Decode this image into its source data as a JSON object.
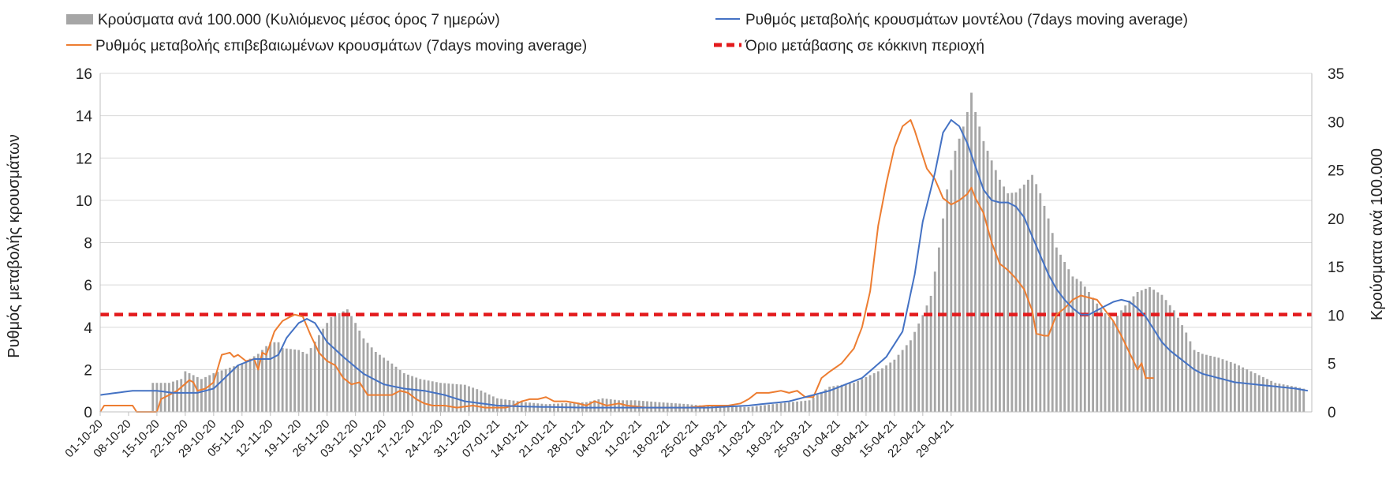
{
  "legend": {
    "bars": "Κρούσματα ανά 100.000 (Κυλιόμενος μέσος όρος 7 ημερών)",
    "model": "Ρυθμός μεταβολής κρουσμάτων μοντέλου (7days moving average)",
    "confirmed": "Ρυθμός μεταβολής επιβεβαιωμένων κρουσμάτων (7days moving average)",
    "threshold": "Όριο μετάβασης σε κόκκινη περιοχή"
  },
  "chart_data": {
    "type": "bar",
    "title": "",
    "ylabel_left": "Ρυθμός μεταβολής κρουσμάτων",
    "ylabel_right": "Κρούσματα ανά 100.000",
    "ylim_left": [
      0,
      16
    ],
    "ylim_right": [
      0,
      35
    ],
    "yticks_left": [
      0,
      2,
      4,
      6,
      8,
      10,
      12,
      14,
      16
    ],
    "yticks_right": [
      0,
      5,
      10,
      15,
      20,
      25,
      30,
      35
    ],
    "xtick_labels": [
      "01-10-20",
      "08-10-20",
      "15-10-20",
      "22-10-20",
      "29-10-20",
      "05-11-20",
      "12-11-20",
      "19-11-20",
      "26-11-20",
      "03-12-20",
      "10-12-20",
      "17-12-20",
      "24-12-20",
      "31-12-20",
      "07-01-21",
      "14-01-21",
      "21-01-21",
      "28-01-21",
      "04-02-21",
      "11-02-21",
      "18-02-21",
      "25-02-21",
      "04-03-21",
      "11-03-21",
      "18-03-21",
      "25-03-21",
      "01-04-21",
      "08-04-21",
      "15-04-21",
      "22-04-21",
      "29-04-21"
    ],
    "grid": true,
    "legend_position": "top",
    "colors": {
      "bars": "#a6a6a6",
      "model": "#4472c4",
      "confirmed": "#ed7d31",
      "threshold": "#e31a1c"
    },
    "threshold_value": 4.6,
    "bars_keyframes": [
      [
        0,
        0
      ],
      [
        12,
        0
      ],
      [
        13,
        3
      ],
      [
        17,
        3
      ],
      [
        20,
        3.4
      ],
      [
        21,
        4.2
      ],
      [
        25,
        3.4
      ],
      [
        28,
        4
      ],
      [
        35,
        5
      ],
      [
        39,
        6
      ],
      [
        42,
        7.2
      ],
      [
        44,
        7.2
      ],
      [
        45,
        6.6
      ],
      [
        49,
        6.4
      ],
      [
        51,
        6
      ],
      [
        52,
        6.6
      ],
      [
        55,
        8.6
      ],
      [
        57,
        9.8
      ],
      [
        60,
        10.4
      ],
      [
        61,
        10.6
      ],
      [
        63,
        9.2
      ],
      [
        65,
        7.6
      ],
      [
        68,
        6.2
      ],
      [
        72,
        5
      ],
      [
        75,
        4
      ],
      [
        79,
        3.4
      ],
      [
        84,
        3
      ],
      [
        90,
        2.8
      ],
      [
        94,
        2.2
      ],
      [
        98,
        1.4
      ],
      [
        105,
        1
      ],
      [
        110,
        0.8
      ],
      [
        120,
        1
      ],
      [
        124,
        1.4
      ],
      [
        128,
        1.2
      ],
      [
        132,
        1.2
      ],
      [
        138,
        1
      ],
      [
        145,
        0.8
      ],
      [
        150,
        0.6
      ],
      [
        160,
        0.5
      ],
      [
        168,
        0.9
      ],
      [
        175,
        1.2
      ],
      [
        180,
        2.6
      ],
      [
        186,
        3
      ],
      [
        192,
        4.2
      ],
      [
        196,
        5.4
      ],
      [
        200,
        7.4
      ],
      [
        203,
        10
      ],
      [
        205,
        12
      ],
      [
        207,
        17
      ],
      [
        209,
        23
      ],
      [
        211,
        27
      ],
      [
        213,
        29.5
      ],
      [
        214,
        31
      ],
      [
        215,
        33
      ],
      [
        216,
        31
      ],
      [
        218,
        28
      ],
      [
        220,
        26
      ],
      [
        222,
        24
      ],
      [
        224,
        22.6
      ],
      [
        226,
        22.7
      ],
      [
        228,
        23.5
      ],
      [
        230,
        24.5
      ],
      [
        232,
        22.6
      ],
      [
        234,
        20
      ],
      [
        236,
        17
      ],
      [
        238,
        15.5
      ],
      [
        240,
        14
      ],
      [
        242,
        13.5
      ],
      [
        244,
        12.4
      ],
      [
        247,
        10.6
      ],
      [
        250,
        9.4
      ],
      [
        252,
        10.5
      ],
      [
        254,
        11.5
      ],
      [
        256,
        12.4
      ],
      [
        259,
        12.9
      ],
      [
        262,
        12.1
      ],
      [
        265,
        10.5
      ],
      [
        268,
        8.2
      ],
      [
        270,
        6.4
      ],
      [
        272,
        6
      ],
      [
        276,
        5.6
      ],
      [
        280,
        5
      ],
      [
        285,
        4
      ],
      [
        290,
        3
      ],
      [
        295,
        2.6
      ],
      [
        298,
        2.3
      ]
    ],
    "confirmed_keyframes": [
      [
        0,
        0
      ],
      [
        1,
        0.3
      ],
      [
        8,
        0.3
      ],
      [
        9,
        0
      ],
      [
        14,
        0
      ],
      [
        15,
        0.6
      ],
      [
        19,
        1
      ],
      [
        22,
        1.5
      ],
      [
        23,
        1.4
      ],
      [
        24,
        1
      ],
      [
        26,
        1.1
      ],
      [
        28,
        1.4
      ],
      [
        30,
        2.7
      ],
      [
        32,
        2.8
      ],
      [
        33,
        2.6
      ],
      [
        34,
        2.7
      ],
      [
        36,
        2.4
      ],
      [
        38,
        2.5
      ],
      [
        39,
        2
      ],
      [
        40,
        2.8
      ],
      [
        41,
        2.7
      ],
      [
        43,
        3.8
      ],
      [
        45,
        4.3
      ],
      [
        48,
        4.6
      ],
      [
        50,
        4.5
      ],
      [
        52,
        3.6
      ],
      [
        54,
        2.8
      ],
      [
        56,
        2.4
      ],
      [
        58,
        2.2
      ],
      [
        60,
        1.6
      ],
      [
        62,
        1.3
      ],
      [
        64,
        1.4
      ],
      [
        66,
        0.8
      ],
      [
        68,
        0.8
      ],
      [
        70,
        0.8
      ],
      [
        72,
        0.8
      ],
      [
        74,
        1
      ],
      [
        76,
        0.9
      ],
      [
        78,
        0.6
      ],
      [
        80,
        0.4
      ],
      [
        82,
        0.3
      ],
      [
        85,
        0.3
      ],
      [
        88,
        0.2
      ],
      [
        92,
        0.3
      ],
      [
        95,
        0.2
      ],
      [
        100,
        0.2
      ],
      [
        102,
        0.3
      ],
      [
        104,
        0.5
      ],
      [
        106,
        0.6
      ],
      [
        108,
        0.6
      ],
      [
        110,
        0.7
      ],
      [
        112,
        0.5
      ],
      [
        115,
        0.5
      ],
      [
        118,
        0.4
      ],
      [
        120,
        0.3
      ],
      [
        122,
        0.5
      ],
      [
        125,
        0.3
      ],
      [
        128,
        0.4
      ],
      [
        130,
        0.3
      ],
      [
        135,
        0.2
      ],
      [
        140,
        0.2
      ],
      [
        145,
        0.2
      ],
      [
        150,
        0.3
      ],
      [
        155,
        0.3
      ],
      [
        158,
        0.4
      ],
      [
        160,
        0.6
      ],
      [
        162,
        0.9
      ],
      [
        165,
        0.9
      ],
      [
        168,
        1
      ],
      [
        170,
        0.9
      ],
      [
        172,
        1
      ],
      [
        174,
        0.7
      ],
      [
        176,
        0.7
      ],
      [
        178,
        1.6
      ],
      [
        180,
        1.9
      ],
      [
        183,
        2.3
      ],
      [
        186,
        3
      ],
      [
        188,
        4
      ],
      [
        190,
        5.7
      ],
      [
        192,
        8.8
      ],
      [
        194,
        10.8
      ],
      [
        196,
        12.5
      ],
      [
        198,
        13.5
      ],
      [
        200,
        13.8
      ],
      [
        201,
        13.3
      ],
      [
        202,
        12.7
      ],
      [
        204,
        11.5
      ],
      [
        206,
        11
      ],
      [
        208,
        10.1
      ],
      [
        210,
        9.8
      ],
      [
        212,
        10
      ],
      [
        214,
        10.3
      ],
      [
        215,
        10.6
      ],
      [
        216,
        10.1
      ],
      [
        218,
        9.4
      ],
      [
        220,
        8
      ],
      [
        222,
        7
      ],
      [
        224,
        6.7
      ],
      [
        226,
        6.3
      ],
      [
        228,
        5.8
      ],
      [
        230,
        4.8
      ],
      [
        231,
        3.7
      ],
      [
        233,
        3.6
      ],
      [
        234,
        3.6
      ],
      [
        236,
        4.6
      ],
      [
        238,
        4.9
      ],
      [
        240,
        5.3
      ],
      [
        242,
        5.5
      ],
      [
        244,
        5.4
      ],
      [
        246,
        5.3
      ],
      [
        248,
        4.8
      ],
      [
        250,
        4.3
      ],
      [
        252,
        3.6
      ],
      [
        254,
        2.8
      ],
      [
        256,
        2
      ],
      [
        257,
        2.3
      ],
      [
        258,
        1.6
      ],
      [
        260,
        1.6
      ]
    ],
    "model_keyframes": [
      [
        0,
        0.8
      ],
      [
        8,
        1
      ],
      [
        14,
        1
      ],
      [
        18,
        0.9
      ],
      [
        24,
        0.9
      ],
      [
        28,
        1.1
      ],
      [
        34,
        2.2
      ],
      [
        38,
        2.5
      ],
      [
        42,
        2.5
      ],
      [
        44,
        2.7
      ],
      [
        46,
        3.5
      ],
      [
        49,
        4.2
      ],
      [
        51,
        4.4
      ],
      [
        53,
        4.2
      ],
      [
        56,
        3.3
      ],
      [
        60,
        2.6
      ],
      [
        65,
        1.8
      ],
      [
        70,
        1.3
      ],
      [
        75,
        1.1
      ],
      [
        80,
        1
      ],
      [
        85,
        0.8
      ],
      [
        90,
        0.5
      ],
      [
        98,
        0.3
      ],
      [
        105,
        0.25
      ],
      [
        120,
        0.2
      ],
      [
        150,
        0.2
      ],
      [
        160,
        0.3
      ],
      [
        170,
        0.5
      ],
      [
        180,
        1
      ],
      [
        188,
        1.6
      ],
      [
        194,
        2.6
      ],
      [
        198,
        3.8
      ],
      [
        201,
        6.5
      ],
      [
        203,
        9
      ],
      [
        206,
        11.3
      ],
      [
        208,
        13.2
      ],
      [
        210,
        13.8
      ],
      [
        212,
        13.5
      ],
      [
        214,
        12.7
      ],
      [
        216,
        11.6
      ],
      [
        218,
        10.5
      ],
      [
        220,
        10
      ],
      [
        222,
        9.9
      ],
      [
        224,
        9.9
      ],
      [
        226,
        9.7
      ],
      [
        228,
        9.2
      ],
      [
        230,
        8.3
      ],
      [
        232,
        7.4
      ],
      [
        234,
        6.5
      ],
      [
        236,
        5.8
      ],
      [
        238,
        5.3
      ],
      [
        240,
        4.9
      ],
      [
        242,
        4.6
      ],
      [
        244,
        4.6
      ],
      [
        246,
        4.8
      ],
      [
        248,
        5
      ],
      [
        250,
        5.2
      ],
      [
        252,
        5.3
      ],
      [
        254,
        5.2
      ],
      [
        256,
        4.9
      ],
      [
        258,
        4.5
      ],
      [
        260,
        3.9
      ],
      [
        262,
        3.3
      ],
      [
        264,
        2.9
      ],
      [
        266,
        2.6
      ],
      [
        268,
        2.3
      ],
      [
        270,
        2
      ],
      [
        272,
        1.8
      ],
      [
        274,
        1.7
      ],
      [
        276,
        1.6
      ],
      [
        280,
        1.4
      ],
      [
        285,
        1.3
      ],
      [
        290,
        1.2
      ],
      [
        295,
        1.1
      ],
      [
        298,
        1
      ]
    ]
  }
}
